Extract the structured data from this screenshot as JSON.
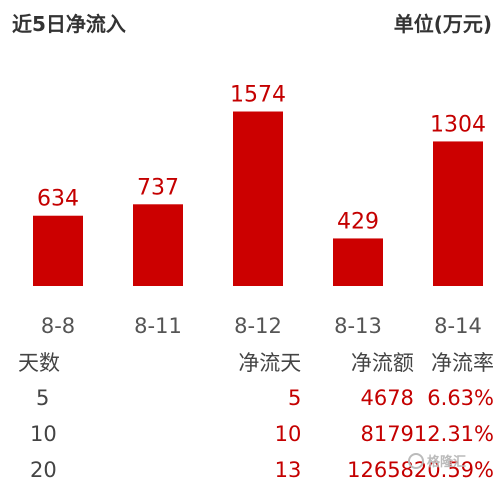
{
  "header": {
    "title": "近5日净流入",
    "unit": "单位(万元)"
  },
  "chart_data": {
    "type": "bar",
    "categories": [
      "8-8",
      "8-11",
      "8-12",
      "8-13",
      "8-14"
    ],
    "values": [
      634,
      737,
      1574,
      429,
      1304
    ],
    "title": "近5日净流入",
    "ylabel": "单位(万元)",
    "grid": false,
    "bar_color": "#cc0000",
    "label_color": "#c40000",
    "ylim": [
      0,
      1750
    ]
  },
  "stats": {
    "headers": [
      "天数",
      "净流天",
      "净流额",
      "净流率"
    ],
    "rows": [
      {
        "days": "5",
        "flow_days": "5",
        "amount": "4678",
        "rate": "6.63%"
      },
      {
        "days": "10",
        "flow_days": "10",
        "amount": "8179",
        "rate": "12.31%"
      },
      {
        "days": "20",
        "flow_days": "13",
        "amount": "12658",
        "rate": "20.59%"
      }
    ]
  },
  "watermark": {
    "text": "格隆汇"
  }
}
